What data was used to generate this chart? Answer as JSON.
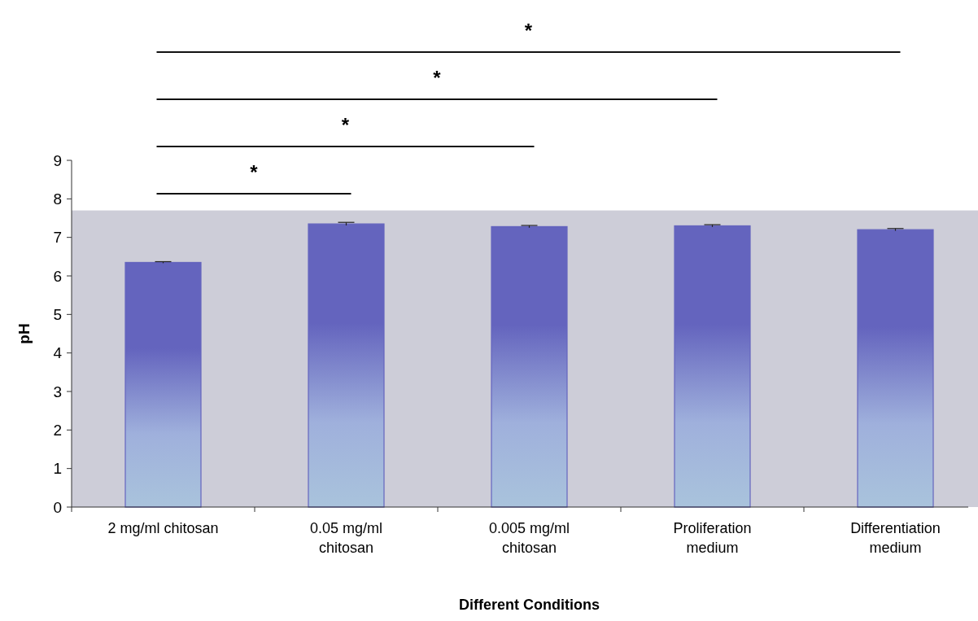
{
  "chart_data": {
    "type": "bar",
    "xlabel": "Different Conditions",
    "ylabel": "pH",
    "categories": [
      "2 mg/ml chitosan",
      "0.05 mg/ml chitosan",
      "0.005 mg/ml chitosan",
      "Proliferation medium",
      "Differentiation medium"
    ],
    "values": [
      6.35,
      7.35,
      7.28,
      7.3,
      7.2
    ],
    "errors": [
      0.02,
      0.04,
      0.03,
      0.03,
      0.03
    ],
    "color": "#6464be",
    "ylim": [
      0,
      9
    ],
    "yticks": [
      0,
      1,
      2,
      3,
      4,
      5,
      6,
      7,
      8,
      9
    ],
    "annotations": [
      "*",
      "*",
      "*",
      "*"
    ],
    "bands": [
      {
        "axis": "y",
        "from": 0,
        "to": 7.7,
        "color": "#cdcdd8"
      }
    ],
    "grid": false
  }
}
